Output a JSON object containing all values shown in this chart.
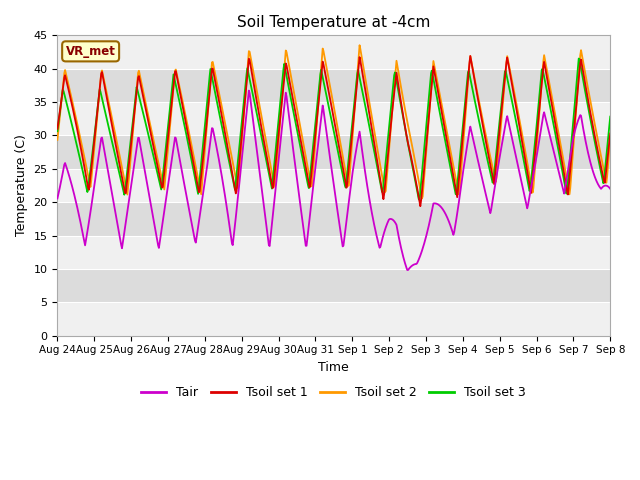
{
  "title": "Soil Temperature at -4cm",
  "xlabel": "Time",
  "ylabel": "Temperature (C)",
  "ylim": [
    0,
    45
  ],
  "yticks": [
    0,
    5,
    10,
    15,
    20,
    25,
    30,
    35,
    40,
    45
  ],
  "x_labels": [
    "Aug 24",
    "Aug 25",
    "Aug 26",
    "Aug 27",
    "Aug 28",
    "Aug 29",
    "Aug 30",
    "Aug 31",
    "Sep 1",
    "Sep 2",
    "Sep 3",
    "Sep 4",
    "Sep 5",
    "Sep 6",
    "Sep 7",
    "Sep 8"
  ],
  "n_days": 15,
  "colors": {
    "Tair": "#cc00cc",
    "Tsoil1": "#dd0000",
    "Tsoil2": "#ff9900",
    "Tsoil3": "#00cc00"
  },
  "background_color": "#ffffff",
  "plot_bg_light": "#f0f0f0",
  "plot_bg_dark": "#dcdcdc",
  "annotation_text": "VR_met",
  "annotation_bg": "#ffffcc",
  "annotation_border": "#996600"
}
